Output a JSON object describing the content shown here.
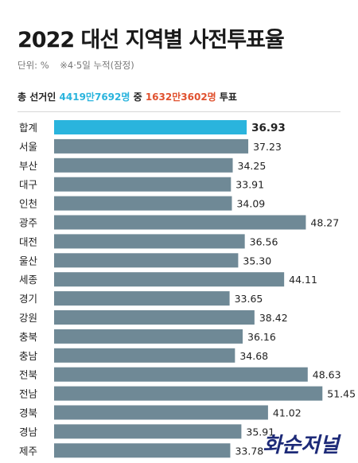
{
  "header": {
    "title": "2022 대선 지역별 사전투표율",
    "unit": "단위: %",
    "note": "※4·5일 누적(잠정)"
  },
  "summary": {
    "prefix": "총 선거인 ",
    "electors": "4419만7692명",
    "middle": " 중 ",
    "voters": "1632만3602명",
    "suffix": " 투표"
  },
  "watermark": "화순저널",
  "colors": {
    "highlight_bar": "#2ab4dd",
    "bar": "#6f8996",
    "summary_blue": "#2ab4dd",
    "summary_red": "#e0512f"
  },
  "chart_data": {
    "type": "bar",
    "orientation": "horizontal",
    "categories": [
      "합계",
      "서울",
      "부산",
      "대구",
      "인천",
      "광주",
      "대전",
      "울산",
      "세종",
      "경기",
      "강원",
      "충북",
      "충남",
      "전북",
      "전남",
      "경북",
      "경남",
      "제주"
    ],
    "values": [
      36.93,
      37.23,
      34.25,
      33.91,
      34.09,
      48.27,
      36.56,
      35.3,
      44.11,
      33.65,
      38.42,
      36.16,
      34.68,
      48.63,
      51.45,
      41.02,
      35.91,
      33.78
    ],
    "labels": [
      "36.93",
      "37.23",
      "34.25",
      "33.91",
      "34.09",
      "48.27",
      "36.56",
      "35.30",
      "44.11",
      "33.65",
      "38.42",
      "36.16",
      "34.68",
      "48.63",
      "51.45",
      "41.02",
      "35.91",
      "33.78"
    ],
    "highlight_index": 0,
    "xlim": [
      0,
      54
    ],
    "grid": false,
    "legend": "none"
  }
}
